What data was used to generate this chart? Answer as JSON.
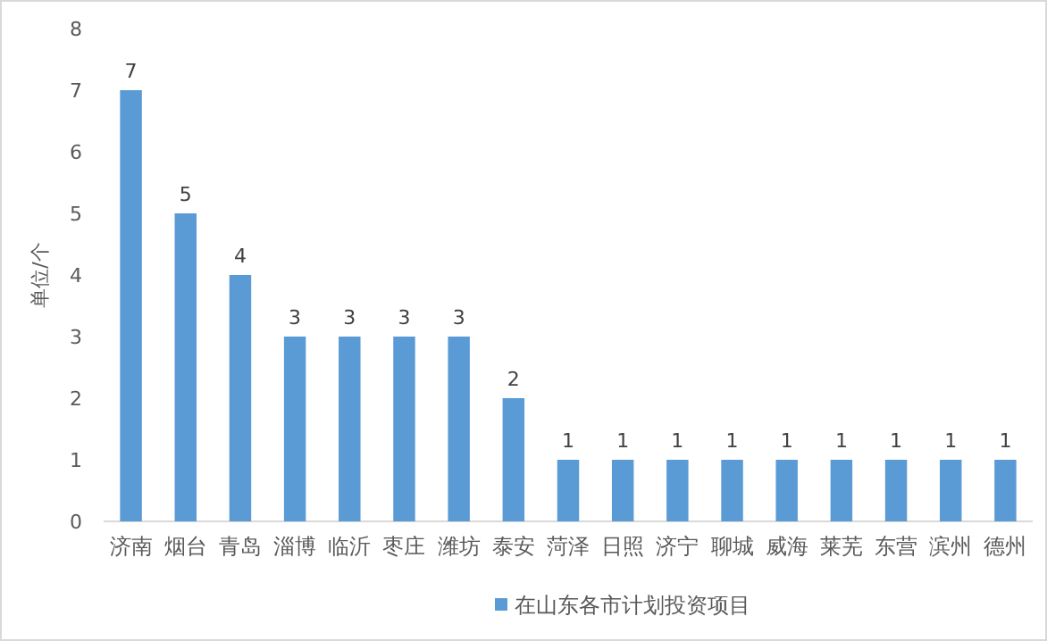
{
  "chart_data": {
    "type": "bar",
    "ylabel": "单位/个",
    "categories": [
      "济南",
      "烟台",
      "青岛",
      "淄博",
      "临沂",
      "枣庄",
      "潍坊",
      "泰安",
      "菏泽",
      "日照",
      "济宁",
      "聊城",
      "威海",
      "莱芜",
      "东营",
      "滨州",
      "德州"
    ],
    "series": [
      {
        "name": "在山东各市计划投资项目",
        "color": "#5b9bd5",
        "values": [
          7,
          5,
          4,
          3,
          3,
          3,
          3,
          2,
          1,
          1,
          1,
          1,
          1,
          1,
          1,
          1,
          1
        ]
      }
    ],
    "ylim": [
      0,
      8
    ],
    "yticks": [
      0,
      1,
      2,
      3,
      4,
      5,
      6,
      7,
      8
    ],
    "data_labels": true,
    "legend": "bottom"
  }
}
